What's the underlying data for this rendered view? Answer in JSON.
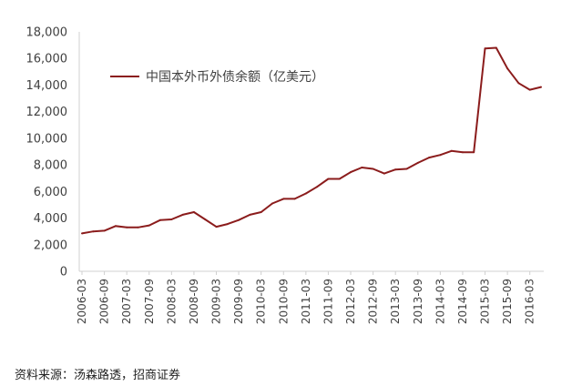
{
  "chart_data": {
    "type": "line",
    "x": [
      "2006-03",
      "2006-06",
      "2006-09",
      "2006-12",
      "2007-03",
      "2007-06",
      "2007-09",
      "2007-12",
      "2008-03",
      "2008-06",
      "2008-09",
      "2008-12",
      "2009-03",
      "2009-06",
      "2009-09",
      "2009-12",
      "2010-03",
      "2010-06",
      "2010-09",
      "2010-12",
      "2011-03",
      "2011-06",
      "2011-09",
      "2011-12",
      "2012-03",
      "2012-06",
      "2012-09",
      "2012-12",
      "2013-03",
      "2013-06",
      "2013-09",
      "2013-12",
      "2014-03",
      "2014-06",
      "2014-09",
      "2014-12",
      "2015-03",
      "2015-06",
      "2015-09",
      "2015-12",
      "2016-03",
      "2016-06"
    ],
    "series": [
      {
        "name": "中国本外币外债余额（亿美元）",
        "color": "#8b1c1c",
        "values": [
          2850,
          3000,
          3050,
          3400,
          3300,
          3300,
          3450,
          3850,
          3900,
          4250,
          4450,
          3900,
          3350,
          3550,
          3850,
          4250,
          4450,
          5100,
          5450,
          5450,
          5850,
          6350,
          6950,
          6950,
          7450,
          7800,
          7700,
          7350,
          7650,
          7700,
          8150,
          8550,
          8750,
          9050,
          8950,
          8950,
          16750,
          16800,
          15250,
          14150,
          13650,
          13850
        ]
      }
    ],
    "xtick_labels": [
      "2006-03",
      "2006-09",
      "2007-03",
      "2007-09",
      "2008-03",
      "2008-09",
      "2009-03",
      "2009-09",
      "2010-03",
      "2010-09",
      "2011-03",
      "2011-09",
      "2012-03",
      "2012-09",
      "2013-03",
      "2013-09",
      "2014-03",
      "2014-09",
      "2015-03",
      "2015-09",
      "2016-03"
    ],
    "ytick_labels": [
      "0",
      "2,000",
      "4,000",
      "6,000",
      "8,000",
      "10,000",
      "12,000",
      "14,000",
      "16,000",
      "18,000"
    ],
    "ylim": [
      0,
      18000
    ],
    "grid": false,
    "legend": "top-left"
  },
  "source_text": "资料来源：汤森路透，招商证券"
}
